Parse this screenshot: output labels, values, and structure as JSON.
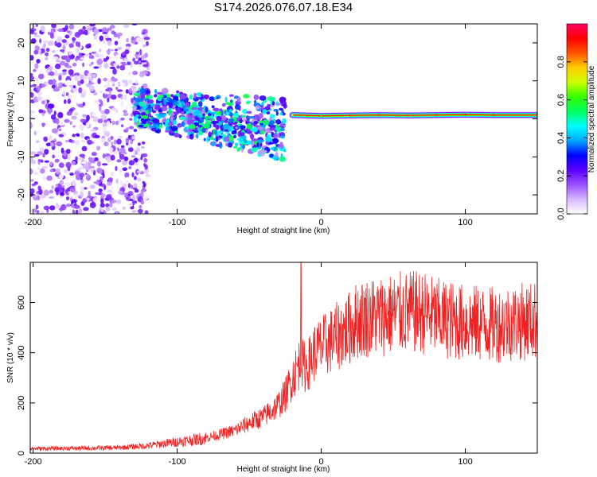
{
  "title": "S174.2026.076.07.18.E34",
  "chart_data": [
    {
      "type": "heatmap",
      "xlabel": "Height of straight line (km)",
      "ylabel": "Frequency (Hz)",
      "xlim": [
        -202,
        150
      ],
      "ylim": [
        -25,
        25
      ],
      "xticks": [
        -200,
        -100,
        0,
        100
      ],
      "xticklabels": [
        "-200",
        "-100",
        "0",
        "100"
      ],
      "yticks": [
        -20,
        -10,
        0,
        10,
        20
      ],
      "yticklabels": [
        "-20",
        "-10",
        "0",
        "10",
        "20"
      ],
      "colorbar": {
        "label": "Normalized spectral amplitude",
        "range": [
          0,
          1
        ],
        "ticks": [
          0,
          0.2,
          0.4,
          0.6,
          0.8
        ],
        "ticklabels": [
          "0.0",
          "0.2",
          "0.4",
          "0.6",
          "0.8"
        ],
        "colormap": [
          "#ffffff",
          "#d6b8ff",
          "#9a50ff",
          "#5a00ff",
          "#0000ff",
          "#00a8ff",
          "#00ffff",
          "#00ff60",
          "#33ff00",
          "#ccff00",
          "#ffcc00",
          "#ff5500",
          "#ff0000",
          "#ff0066"
        ]
      },
      "signal_track": {
        "x": [
          -20,
          0,
          20,
          40,
          60,
          80,
          100,
          120,
          150
        ],
        "frequency_hz": [
          1.0,
          0.8,
          0.9,
          1.0,
          0.9,
          1.0,
          1.1,
          1.0,
          1.0
        ],
        "amplitude": [
          0.75,
          0.8,
          0.9,
          0.9,
          0.88,
          0.9,
          0.92,
          0.9,
          0.9
        ]
      },
      "regions": [
        {
          "name": "noise",
          "x_range": [
            -202,
            -130
          ],
          "frequency_range": [
            -25,
            25
          ],
          "amplitude": 0.15
        },
        {
          "name": "diffuse",
          "x_range": [
            -130,
            -25
          ],
          "frequency_range": [
            -10,
            7
          ],
          "amplitude": 0.3
        }
      ]
    },
    {
      "type": "line",
      "xlabel": "Height of straight line (km)",
      "ylabel": "SNR (10 * v/v)",
      "xlim": [
        -202,
        150
      ],
      "ylim": [
        0,
        760
      ],
      "xticks": [
        -200,
        -100,
        0,
        100
      ],
      "xticklabels": [
        "-200",
        "-100",
        "0",
        "100"
      ],
      "yticks": [
        0,
        200,
        400,
        600
      ],
      "yticklabels": [
        "0",
        "200",
        "400",
        "600"
      ],
      "color": "#ee2222",
      "series": [
        {
          "name": "SNR",
          "x": [
            -202,
            -180,
            -160,
            -140,
            -120,
            -100,
            -80,
            -60,
            -50,
            -40,
            -30,
            -25,
            -20,
            -15,
            -10,
            -5,
            0,
            10,
            20,
            25,
            30,
            40,
            50,
            60,
            70,
            80,
            90,
            100,
            110,
            120,
            130,
            140,
            150
          ],
          "values": [
            18,
            19,
            20,
            22,
            30,
            45,
            60,
            90,
            120,
            145,
            190,
            230,
            300,
            360,
            340,
            400,
            420,
            460,
            500,
            530,
            540,
            545,
            555,
            560,
            560,
            540,
            530,
            520,
            515,
            510,
            520,
            525,
            530
          ],
          "spike": {
            "x": -14,
            "value": 760
          }
        }
      ]
    }
  ]
}
